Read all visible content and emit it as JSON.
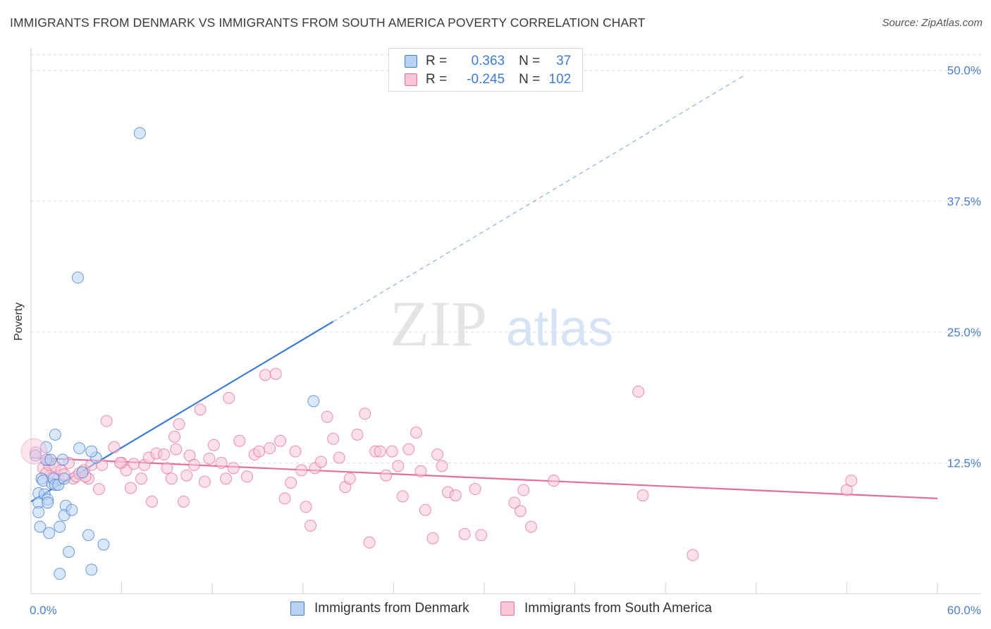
{
  "title": "IMMIGRANTS FROM DENMARK VS IMMIGRANTS FROM SOUTH AMERICA POVERTY CORRELATION CHART",
  "source": "Source: ZipAtlas.com",
  "watermark": {
    "zip": "ZIP",
    "atlas": "atlas"
  },
  "colors": {
    "blue": "#3f7bd0",
    "blue_fill": "#b9d3f5",
    "pink": "#e46e9c",
    "pink_fill": "#f8c6d7",
    "grid": "#d9d9d9",
    "axis_text": "#4a80cc"
  },
  "stats": {
    "r_label": "R =",
    "n_label": "N =",
    "series1": {
      "r": "0.363",
      "n": "37"
    },
    "series2": {
      "r": "-0.245",
      "n": "102"
    }
  },
  "legend": {
    "series1": "Immigrants from Denmark",
    "series2": "Immigrants from South America"
  },
  "chart_data": {
    "type": "scatter",
    "ylabel": "Poverty",
    "xlim": [
      0,
      60
    ],
    "ylim": [
      0,
      52
    ],
    "x_tick_labels": {
      "0": "0.0%",
      "60": "60.0%"
    },
    "y_ticks": [
      12.5,
      25.0,
      37.5,
      50.0
    ],
    "y_tick_labels": [
      "12.5%",
      "25.0%",
      "37.5%",
      "50.0%"
    ],
    "grid": "horizontal dashed",
    "series": [
      {
        "name": "Immigrants from Denmark",
        "color": "#3f7bd0",
        "trend": {
          "x0": 0,
          "y0": 8.8,
          "x1": 20,
          "y1": 26.0,
          "dashed_to_x": 47.2,
          "dashed_to_y": 49.5
        },
        "points": [
          [
            0.3,
            13.2
          ],
          [
            0.5,
            9.6
          ],
          [
            0.5,
            8.7
          ],
          [
            0.5,
            7.8
          ],
          [
            0.6,
            6.4
          ],
          [
            0.7,
            11.0
          ],
          [
            0.8,
            10.8
          ],
          [
            0.9,
            9.5
          ],
          [
            1.0,
            14.0
          ],
          [
            1.0,
            12.8
          ],
          [
            1.1,
            9.0
          ],
          [
            1.1,
            8.7
          ],
          [
            1.2,
            5.8
          ],
          [
            1.3,
            12.8
          ],
          [
            1.4,
            10.5
          ],
          [
            1.5,
            11.0
          ],
          [
            1.6,
            15.2
          ],
          [
            1.6,
            10.4
          ],
          [
            1.8,
            10.4
          ],
          [
            1.9,
            6.4
          ],
          [
            2.1,
            12.8
          ],
          [
            2.2,
            11.0
          ],
          [
            2.3,
            8.4
          ],
          [
            2.2,
            7.5
          ],
          [
            2.5,
            4.0
          ],
          [
            2.7,
            8.0
          ],
          [
            3.2,
            13.9
          ],
          [
            3.4,
            11.6
          ],
          [
            3.8,
            5.6
          ],
          [
            4.0,
            2.3
          ],
          [
            4.3,
            13.0
          ],
          [
            4.0,
            13.6
          ],
          [
            4.8,
            4.7
          ],
          [
            1.9,
            1.9
          ],
          [
            3.1,
            30.2
          ],
          [
            7.2,
            44.0
          ],
          [
            18.7,
            18.4
          ]
        ]
      },
      {
        "name": "Immigrants from South America",
        "color": "#e46e9c",
        "trend": {
          "x0": 0,
          "y0": 13.0,
          "x1": 60,
          "y1": 9.1
        },
        "points": [
          [
            0.3,
            13.5
          ],
          [
            0.8,
            12.0
          ],
          [
            1.0,
            11.5
          ],
          [
            1.2,
            12.3
          ],
          [
            1.4,
            11.1
          ],
          [
            1.6,
            12.2
          ],
          [
            1.8,
            11.0
          ],
          [
            2.0,
            11.8
          ],
          [
            2.2,
            11.4
          ],
          [
            2.5,
            12.5
          ],
          [
            2.8,
            11.0
          ],
          [
            3.0,
            11.2
          ],
          [
            3.2,
            11.5
          ],
          [
            3.5,
            11.8
          ],
          [
            3.8,
            11.0
          ],
          [
            4.0,
            12.3
          ],
          [
            4.5,
            10.0
          ],
          [
            4.7,
            12.3
          ],
          [
            5.0,
            16.5
          ],
          [
            5.5,
            14.0
          ],
          [
            6.0,
            12.5
          ],
          [
            6.3,
            11.8
          ],
          [
            6.6,
            10.1
          ],
          [
            6.8,
            12.4
          ],
          [
            7.3,
            11.0
          ],
          [
            7.5,
            12.3
          ],
          [
            7.8,
            13.0
          ],
          [
            8.0,
            8.8
          ],
          [
            8.3,
            13.4
          ],
          [
            8.8,
            13.3
          ],
          [
            9.0,
            12.0
          ],
          [
            9.3,
            11.0
          ],
          [
            9.5,
            15.0
          ],
          [
            9.8,
            16.2
          ],
          [
            10.1,
            8.8
          ],
          [
            10.3,
            11.3
          ],
          [
            10.5,
            13.2
          ],
          [
            10.8,
            12.3
          ],
          [
            11.2,
            17.6
          ],
          [
            11.5,
            10.7
          ],
          [
            11.8,
            12.9
          ],
          [
            12.1,
            14.2
          ],
          [
            12.6,
            12.5
          ],
          [
            12.9,
            11.0
          ],
          [
            13.1,
            18.7
          ],
          [
            13.4,
            12.0
          ],
          [
            13.8,
            14.6
          ],
          [
            14.3,
            11.2
          ],
          [
            14.8,
            13.3
          ],
          [
            15.1,
            13.6
          ],
          [
            15.5,
            20.9
          ],
          [
            15.8,
            13.9
          ],
          [
            16.2,
            21.0
          ],
          [
            16.5,
            14.6
          ],
          [
            16.8,
            9.1
          ],
          [
            17.2,
            10.6
          ],
          [
            17.5,
            13.6
          ],
          [
            17.9,
            11.8
          ],
          [
            18.2,
            8.3
          ],
          [
            18.5,
            6.5
          ],
          [
            18.8,
            12.0
          ],
          [
            19.2,
            12.6
          ],
          [
            19.6,
            16.9
          ],
          [
            20.0,
            14.8
          ],
          [
            20.4,
            13.0
          ],
          [
            20.8,
            10.2
          ],
          [
            21.1,
            11.0
          ],
          [
            21.6,
            15.2
          ],
          [
            22.1,
            17.2
          ],
          [
            22.4,
            4.9
          ],
          [
            22.8,
            13.6
          ],
          [
            23.1,
            13.6
          ],
          [
            23.5,
            11.3
          ],
          [
            23.9,
            13.6
          ],
          [
            24.3,
            12.2
          ],
          [
            24.6,
            9.3
          ],
          [
            25.0,
            13.8
          ],
          [
            25.5,
            15.4
          ],
          [
            25.8,
            11.7
          ],
          [
            26.1,
            8.0
          ],
          [
            26.6,
            5.3
          ],
          [
            26.9,
            13.3
          ],
          [
            27.2,
            12.2
          ],
          [
            27.6,
            9.7
          ],
          [
            28.1,
            9.4
          ],
          [
            28.7,
            5.7
          ],
          [
            29.4,
            10.0
          ],
          [
            29.8,
            5.6
          ],
          [
            32.0,
            8.7
          ],
          [
            32.4,
            7.9
          ],
          [
            32.6,
            9.9
          ],
          [
            33.1,
            6.4
          ],
          [
            34.6,
            10.8
          ],
          [
            40.2,
            19.3
          ],
          [
            40.5,
            9.4
          ],
          [
            43.8,
            3.7
          ],
          [
            54.0,
            9.9
          ],
          [
            54.3,
            10.8
          ],
          [
            1.1,
            12.8
          ],
          [
            3.6,
            11.2
          ],
          [
            5.9,
            12.5
          ],
          [
            9.6,
            13.8
          ]
        ]
      }
    ]
  }
}
